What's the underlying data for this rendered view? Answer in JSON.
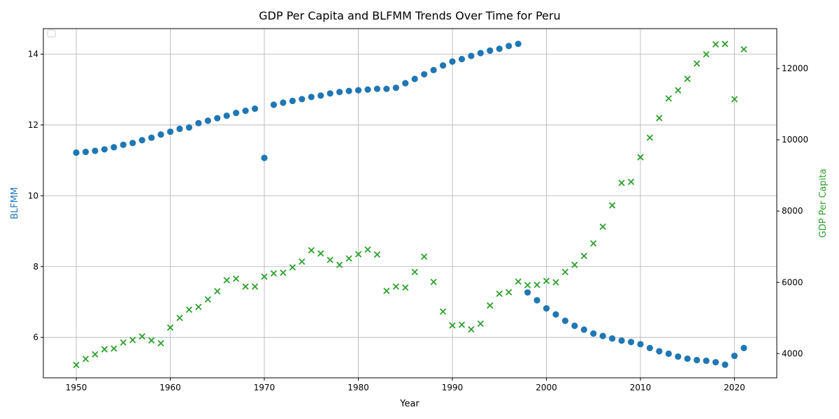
{
  "chart_data": {
    "type": "scatter",
    "title": "GDP Per Capita and BLFMM Trends Over Time for Peru",
    "xlabel": "Year",
    "ylabel_left": "BLFMM",
    "ylabel_right": "GDP Per Capita",
    "xlim": [
      1946.5,
      2024.5
    ],
    "ylim_left": [
      4.86,
      14.72
    ],
    "ylim_right": [
      3320,
      13120
    ],
    "x_ticks": [
      1950,
      1960,
      1970,
      1980,
      1990,
      2000,
      2010,
      2020
    ],
    "y_ticks_left": [
      6,
      8,
      10,
      12,
      14
    ],
    "y_ticks_right": [
      4000,
      6000,
      8000,
      10000,
      12000
    ],
    "grid": true,
    "legend": "upper-left (empty)",
    "colors": {
      "blfmm": "#1f77b4",
      "gdp": "#2ca02c",
      "blfmm_label": "#1f77b4",
      "gdp_label": "#2ca02c"
    },
    "series": [
      {
        "name": "BLFMM",
        "axis": "left",
        "marker": "circle",
        "x": [
          1950,
          1951,
          1952,
          1953,
          1954,
          1955,
          1956,
          1957,
          1958,
          1959,
          1960,
          1961,
          1962,
          1963,
          1964,
          1965,
          1966,
          1967,
          1968,
          1969,
          1970,
          1971,
          1972,
          1973,
          1974,
          1975,
          1976,
          1977,
          1978,
          1979,
          1980,
          1981,
          1982,
          1983,
          1984,
          1985,
          1986,
          1987,
          1988,
          1989,
          1990,
          1991,
          1992,
          1993,
          1994,
          1995,
          1996,
          1997,
          1998,
          1999,
          2000,
          2001,
          2002,
          2003,
          2004,
          2005,
          2006,
          2007,
          2008,
          2009,
          2010,
          2011,
          2012,
          2013,
          2014,
          2015,
          2016,
          2017,
          2018,
          2019,
          2020,
          2021
        ],
        "values": [
          11.22,
          11.24,
          11.27,
          11.31,
          11.37,
          11.44,
          11.49,
          11.57,
          11.64,
          11.73,
          11.81,
          11.89,
          11.93,
          12.05,
          12.12,
          12.19,
          12.26,
          12.34,
          12.4,
          12.46,
          11.07,
          12.57,
          12.63,
          12.68,
          12.73,
          12.79,
          12.83,
          12.89,
          12.93,
          12.96,
          12.98,
          13.0,
          13.02,
          13.02,
          13.05,
          13.18,
          13.3,
          13.43,
          13.55,
          13.68,
          13.79,
          13.86,
          13.95,
          14.03,
          14.1,
          14.15,
          14.23,
          14.29,
          7.27,
          7.05,
          6.82,
          6.65,
          6.47,
          6.33,
          6.22,
          6.11,
          6.04,
          5.97,
          5.91,
          5.87,
          5.81,
          5.7,
          5.61,
          5.54,
          5.46,
          5.4,
          5.36,
          5.34,
          5.3,
          5.23,
          5.48,
          5.7
        ]
      },
      {
        "name": "GDP Per Capita",
        "axis": "right",
        "marker": "x",
        "x": [
          1950,
          1951,
          1952,
          1953,
          1954,
          1955,
          1956,
          1957,
          1958,
          1959,
          1960,
          1961,
          1962,
          1963,
          1964,
          1965,
          1966,
          1967,
          1968,
          1969,
          1970,
          1971,
          1972,
          1973,
          1974,
          1975,
          1976,
          1977,
          1978,
          1979,
          1980,
          1981,
          1982,
          1983,
          1984,
          1985,
          1986,
          1987,
          1988,
          1989,
          1990,
          1991,
          1992,
          1993,
          1994,
          1995,
          1996,
          1997,
          1998,
          1999,
          2000,
          2001,
          2002,
          2003,
          2004,
          2005,
          2006,
          2007,
          2008,
          2009,
          2010,
          2011,
          2012,
          2013,
          2014,
          2015,
          2016,
          2017,
          2018,
          2019,
          2020,
          2021
        ],
        "values": [
          3680,
          3850,
          3980,
          4120,
          4140,
          4310,
          4380,
          4480,
          4370,
          4290,
          4730,
          5000,
          5230,
          5310,
          5520,
          5750,
          6060,
          6100,
          5880,
          5880,
          6160,
          6250,
          6270,
          6420,
          6580,
          6900,
          6810,
          6630,
          6490,
          6670,
          6790,
          6920,
          6780,
          5760,
          5880,
          5850,
          6290,
          6720,
          6010,
          5180,
          4790,
          4810,
          4680,
          4840,
          5350,
          5680,
          5720,
          6020,
          5920,
          5930,
          6040,
          6000,
          6290,
          6490,
          6740,
          7090,
          7560,
          8160,
          8790,
          8820,
          9510,
          10060,
          10610,
          11160,
          11390,
          11710,
          12140,
          12400,
          12680,
          12690,
          11140,
          12540
        ]
      }
    ]
  }
}
